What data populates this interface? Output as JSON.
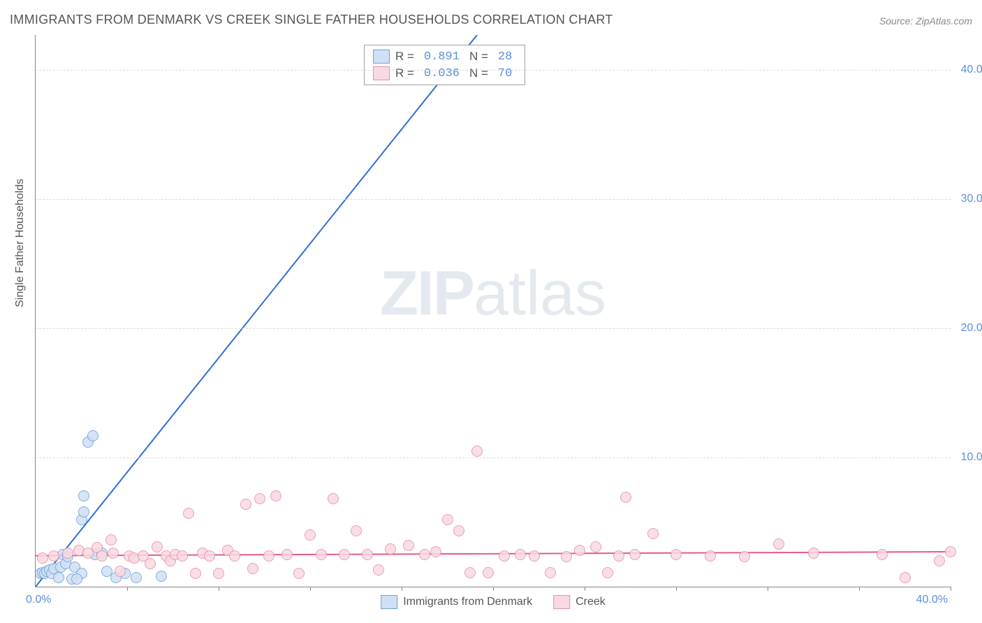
{
  "title": "IMMIGRANTS FROM DENMARK VS CREEK SINGLE FATHER HOUSEHOLDS CORRELATION CHART",
  "source_prefix": "Source: ",
  "source": "ZipAtlas.com",
  "y_axis_label": "Single Father Households",
  "watermark_bold": "ZIP",
  "watermark_light": "atlas",
  "chart": {
    "type": "scatter",
    "xlim": [
      0,
      40
    ],
    "ylim": [
      0,
      42.7
    ],
    "x_origin_label": "0.0%",
    "x_max_label": "40.0%",
    "y_ticks": [
      {
        "v": 10,
        "label": "10.0%"
      },
      {
        "v": 20,
        "label": "20.0%"
      },
      {
        "v": 30,
        "label": "30.0%"
      },
      {
        "v": 40,
        "label": "40.0%"
      }
    ],
    "x_tick_positions": [
      4,
      8,
      12,
      16,
      20,
      24,
      28,
      32,
      36,
      40
    ],
    "background_color": "#ffffff",
    "grid_color": "#dddddd",
    "point_radius": 8,
    "series": [
      {
        "name": "Immigrants from Denmark",
        "fill": "#cfe0f5",
        "stroke": "#6f9fd8",
        "R": "0.891",
        "N": "28",
        "regression": {
          "x1": 0,
          "y1": 0,
          "x2": 19.3,
          "y2": 42.7,
          "color": "#2f6fd0",
          "width": 2
        },
        "points": [
          [
            0.2,
            1.0
          ],
          [
            0.3,
            1.1
          ],
          [
            0.4,
            1.0
          ],
          [
            0.5,
            1.2
          ],
          [
            0.6,
            1.3
          ],
          [
            0.7,
            1.0
          ],
          [
            0.8,
            1.4
          ],
          [
            1.0,
            0.7
          ],
          [
            1.1,
            1.5
          ],
          [
            1.2,
            2.5
          ],
          [
            1.3,
            1.8
          ],
          [
            1.4,
            2.3
          ],
          [
            1.6,
            0.6
          ],
          [
            1.7,
            1.5
          ],
          [
            2.0,
            1.0
          ],
          [
            2.1,
            7.0
          ],
          [
            2.3,
            11.2
          ],
          [
            2.5,
            11.7
          ],
          [
            2.0,
            5.2
          ],
          [
            2.1,
            5.8
          ],
          [
            2.6,
            2.5
          ],
          [
            2.9,
            2.6
          ],
          [
            3.1,
            1.2
          ],
          [
            3.5,
            0.7
          ],
          [
            3.9,
            1.0
          ],
          [
            4.4,
            0.7
          ],
          [
            5.5,
            0.8
          ],
          [
            1.8,
            0.6
          ]
        ]
      },
      {
        "name": "Creek",
        "fill": "#f9d9e1",
        "stroke": "#e78fa6",
        "R": "0.036",
        "N": "70",
        "regression": {
          "x1": 0,
          "y1": 2.4,
          "x2": 40,
          "y2": 2.7,
          "color": "#e45b85",
          "width": 2
        },
        "points": [
          [
            0.3,
            2.2
          ],
          [
            0.8,
            2.4
          ],
          [
            1.4,
            2.6
          ],
          [
            1.9,
            2.8
          ],
          [
            2.3,
            2.6
          ],
          [
            2.7,
            3.0
          ],
          [
            2.9,
            2.4
          ],
          [
            3.3,
            3.6
          ],
          [
            3.4,
            2.6
          ],
          [
            3.7,
            1.2
          ],
          [
            4.1,
            2.4
          ],
          [
            4.3,
            2.2
          ],
          [
            4.7,
            2.4
          ],
          [
            5.0,
            1.8
          ],
          [
            5.3,
            3.1
          ],
          [
            5.7,
            2.4
          ],
          [
            5.9,
            2.0
          ],
          [
            6.1,
            2.5
          ],
          [
            6.4,
            2.4
          ],
          [
            6.7,
            5.7
          ],
          [
            7.0,
            1.0
          ],
          [
            7.3,
            2.6
          ],
          [
            7.6,
            2.4
          ],
          [
            8.0,
            1.0
          ],
          [
            8.4,
            2.8
          ],
          [
            8.7,
            2.4
          ],
          [
            9.2,
            6.4
          ],
          [
            9.5,
            1.4
          ],
          [
            9.8,
            6.8
          ],
          [
            10.2,
            2.4
          ],
          [
            10.5,
            7.0
          ],
          [
            11.0,
            2.5
          ],
          [
            11.5,
            1.0
          ],
          [
            12.0,
            4.0
          ],
          [
            12.5,
            2.5
          ],
          [
            13.0,
            6.8
          ],
          [
            13.5,
            2.5
          ],
          [
            14.0,
            4.3
          ],
          [
            14.5,
            2.5
          ],
          [
            15.0,
            1.3
          ],
          [
            15.5,
            2.9
          ],
          [
            16.3,
            3.2
          ],
          [
            17.0,
            2.5
          ],
          [
            17.5,
            2.7
          ],
          [
            18.0,
            5.2
          ],
          [
            18.5,
            4.3
          ],
          [
            19.0,
            1.1
          ],
          [
            19.3,
            10.5
          ],
          [
            19.8,
            1.1
          ],
          [
            20.5,
            2.4
          ],
          [
            21.2,
            2.5
          ],
          [
            21.8,
            2.4
          ],
          [
            22.5,
            1.1
          ],
          [
            23.2,
            2.3
          ],
          [
            23.8,
            2.8
          ],
          [
            24.5,
            3.1
          ],
          [
            25.0,
            1.1
          ],
          [
            25.5,
            2.4
          ],
          [
            25.8,
            6.9
          ],
          [
            26.2,
            2.5
          ],
          [
            27.0,
            4.1
          ],
          [
            28.0,
            2.5
          ],
          [
            29.5,
            2.4
          ],
          [
            31.0,
            2.3
          ],
          [
            32.5,
            3.3
          ],
          [
            34.0,
            2.6
          ],
          [
            37.0,
            2.5
          ],
          [
            38.0,
            0.7
          ],
          [
            39.5,
            2.0
          ],
          [
            40.0,
            2.7
          ]
        ]
      }
    ],
    "legend_labels": {
      "R": "R =",
      "N": "N ="
    }
  },
  "bottom_legend": [
    {
      "label": "Immigrants from Denmark",
      "fill": "#cfe0f5",
      "stroke": "#6f9fd8"
    },
    {
      "label": "Creek",
      "fill": "#f9d9e1",
      "stroke": "#e78fa6"
    }
  ]
}
